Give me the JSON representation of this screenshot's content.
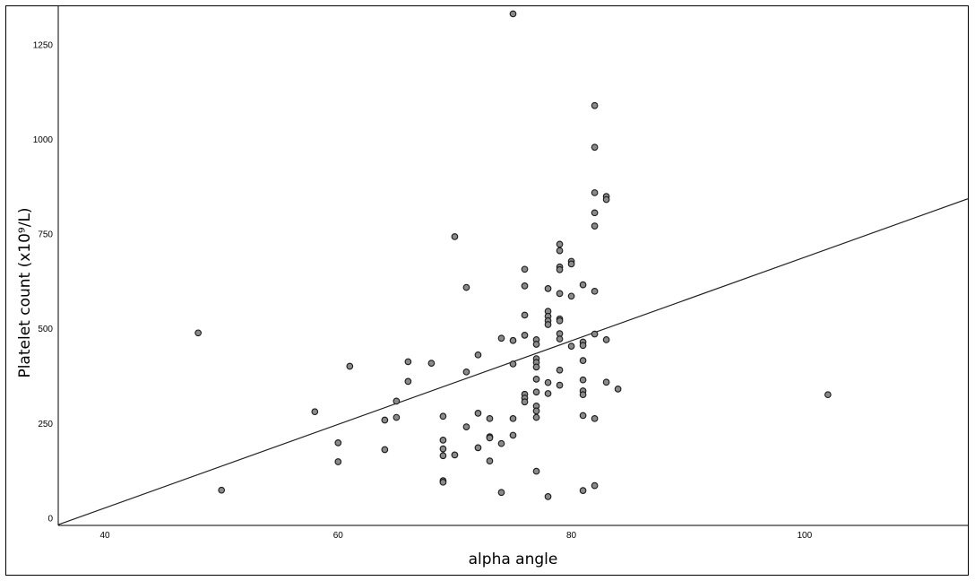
{
  "chart_data": {
    "type": "scatter",
    "xlabel": "alpha angle",
    "ylabel": "Platelet count (x10⁹/L)",
    "xlim": [
      36,
      114
    ],
    "ylim": [
      -20,
      1350
    ],
    "x_ticks": [
      40,
      60,
      80,
      100
    ],
    "y_ticks": [
      0,
      250,
      500,
      750,
      1000,
      1250
    ],
    "grid": false,
    "legend": "none",
    "fit_line": {
      "type": "linear",
      "x": [
        36,
        114
      ],
      "y": [
        -18,
        842
      ]
    },
    "series": [
      {
        "points": [
          [
            48,
            488
          ],
          [
            50,
            73
          ],
          [
            58,
            280
          ],
          [
            60,
            198
          ],
          [
            60,
            148
          ],
          [
            61,
            400
          ],
          [
            64,
            180
          ],
          [
            64,
            258
          ],
          [
            65,
            265
          ],
          [
            65,
            308
          ],
          [
            66,
            360
          ],
          [
            66,
            412
          ],
          [
            68,
            408
          ],
          [
            69,
            268
          ],
          [
            69,
            205
          ],
          [
            69,
            182
          ],
          [
            69,
            164
          ],
          [
            69,
            98
          ],
          [
            69,
            94
          ],
          [
            70,
            742
          ],
          [
            70,
            166
          ],
          [
            71,
            608
          ],
          [
            71,
            385
          ],
          [
            71,
            240
          ],
          [
            72,
            430
          ],
          [
            72,
            276
          ],
          [
            72,
            185
          ],
          [
            73,
            262
          ],
          [
            73,
            214
          ],
          [
            73,
            211
          ],
          [
            73,
            150
          ],
          [
            74,
            474
          ],
          [
            74,
            196
          ],
          [
            74,
            67
          ],
          [
            75,
            1330
          ],
          [
            75,
            468
          ],
          [
            75,
            406
          ],
          [
            75,
            262
          ],
          [
            75,
            218
          ],
          [
            76,
            656
          ],
          [
            76,
            612
          ],
          [
            76,
            535
          ],
          [
            76,
            482
          ],
          [
            76,
            326
          ],
          [
            76,
            316
          ],
          [
            76,
            306
          ],
          [
            77,
            470
          ],
          [
            77,
            458
          ],
          [
            77,
            420
          ],
          [
            77,
            410
          ],
          [
            77,
            398
          ],
          [
            77,
            366
          ],
          [
            77,
            332
          ],
          [
            77,
            295
          ],
          [
            77,
            282
          ],
          [
            77,
            265
          ],
          [
            77,
            123
          ],
          [
            78,
            605
          ],
          [
            78,
            545
          ],
          [
            78,
            532
          ],
          [
            78,
            520
          ],
          [
            78,
            510
          ],
          [
            78,
            357
          ],
          [
            78,
            328
          ],
          [
            78,
            56
          ],
          [
            79,
            722
          ],
          [
            79,
            705
          ],
          [
            79,
            662
          ],
          [
            79,
            655
          ],
          [
            79,
            592
          ],
          [
            79,
            525
          ],
          [
            79,
            520
          ],
          [
            79,
            486
          ],
          [
            79,
            472
          ],
          [
            79,
            390
          ],
          [
            79,
            350
          ],
          [
            80,
            677
          ],
          [
            80,
            670
          ],
          [
            80,
            585
          ],
          [
            80,
            453
          ],
          [
            81,
            615
          ],
          [
            81,
            464
          ],
          [
            81,
            455
          ],
          [
            81,
            415
          ],
          [
            81,
            364
          ],
          [
            81,
            335
          ],
          [
            81,
            325
          ],
          [
            81,
            270
          ],
          [
            81,
            72
          ],
          [
            82,
            1088
          ],
          [
            82,
            978
          ],
          [
            82,
            858
          ],
          [
            82,
            805
          ],
          [
            82,
            770
          ],
          [
            82,
            598
          ],
          [
            82,
            485
          ],
          [
            82,
            262
          ],
          [
            82,
            85
          ],
          [
            83,
            848
          ],
          [
            83,
            840
          ],
          [
            83,
            470
          ],
          [
            83,
            358
          ],
          [
            84,
            340
          ],
          [
            102,
            325
          ]
        ]
      }
    ]
  }
}
